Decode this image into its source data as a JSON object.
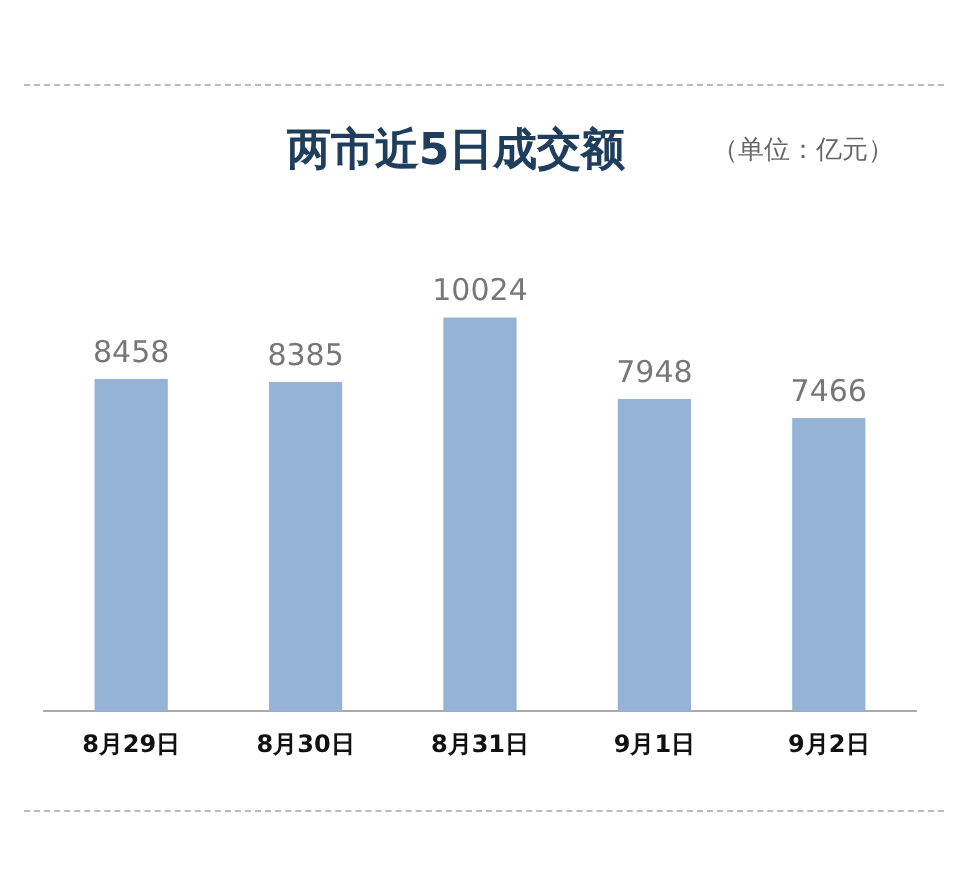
{
  "chart_data": {
    "type": "bar",
    "title": "两市近5日成交额",
    "subtitle": "（单位：亿元）",
    "categories": [
      "8月29日",
      "8月30日",
      "8月31日",
      "9月1日",
      "9月2日"
    ],
    "values": [
      8458,
      8385,
      10024,
      7948,
      7466
    ],
    "color": "#95b3d7",
    "data_labels": true,
    "grid": false,
    "legend": false
  }
}
